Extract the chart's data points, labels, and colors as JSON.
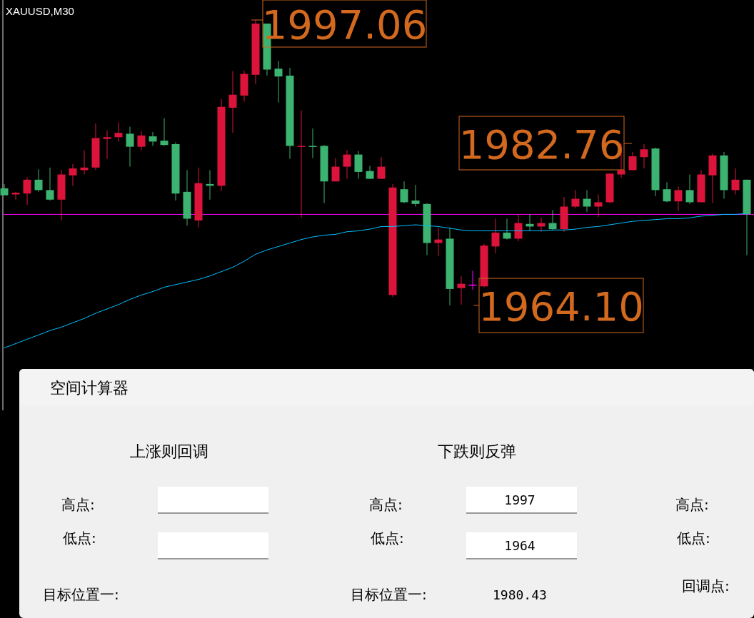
{
  "chart_data": [
    {
      "type": "candlestick",
      "title": "XAUUSD,M30",
      "categories": [
        null,
        null,
        null,
        null,
        null,
        null,
        null,
        null,
        null,
        null,
        null,
        null,
        null,
        null,
        null,
        null,
        null,
        null,
        null,
        null,
        null,
        null,
        null,
        null,
        null,
        null,
        null,
        null,
        null,
        null,
        null,
        null,
        null,
        null,
        null,
        null,
        null,
        null,
        null,
        null,
        null,
        null,
        null,
        null,
        null,
        null,
        null,
        null,
        null,
        null,
        null,
        null,
        null,
        null,
        null,
        null,
        null,
        null,
        null,
        null,
        null,
        null,
        null,
        null,
        null,
        null
      ],
      "ohlc": [
        [
          1977.6,
          1978.1,
          1976.8,
          1976.8
        ],
        [
          1976.9,
          1977.2,
          1976.3,
          1977.1
        ],
        [
          1977.0,
          1978.9,
          1975.7,
          1978.6
        ],
        [
          1978.6,
          1979.8,
          1977.2,
          1977.4
        ],
        [
          1977.4,
          1980.0,
          1976.2,
          1976.3
        ],
        [
          1976.3,
          1979.7,
          1973.9,
          1979.2
        ],
        [
          1979.1,
          1980.4,
          1977.9,
          1979.9
        ],
        [
          1979.7,
          1982.0,
          1979.2,
          1980.0
        ],
        [
          1980.0,
          1985.1,
          1979.7,
          1983.4
        ],
        [
          1983.3,
          1984.3,
          1981.0,
          1983.5
        ],
        [
          1983.5,
          1985.2,
          1983.0,
          1984.0
        ],
        [
          1983.9,
          1984.7,
          1980.1,
          1982.4
        ],
        [
          1982.4,
          1984.2,
          1982.0,
          1983.7
        ],
        [
          1983.6,
          1984.1,
          1982.5,
          1983.0
        ],
        [
          1983.1,
          1985.7,
          1982.5,
          1982.6
        ],
        [
          1982.7,
          1982.9,
          1976.2,
          1977.0
        ],
        [
          1977.2,
          1979.7,
          1973.3,
          1974.1
        ],
        [
          1973.9,
          1980.0,
          1973.1,
          1978.2
        ],
        [
          1978.1,
          1979.7,
          1976.3,
          1977.9
        ],
        [
          1977.9,
          1987.9,
          1977.3,
          1987.0
        ],
        [
          1986.9,
          1991.1,
          1984.0,
          1988.4
        ],
        [
          1988.3,
          1991.2,
          1987.6,
          1990.8
        ],
        [
          1990.7,
          1997.06,
          1989.6,
          1996.6
        ],
        [
          1996.6,
          1996.6,
          1990.6,
          1991.3
        ],
        [
          1991.4,
          1992.3,
          1987.5,
          1990.5
        ],
        [
          1990.6,
          1991.5,
          1981.0,
          1982.5
        ],
        [
          1982.4,
          1986.6,
          1974.2,
          1982.5
        ],
        [
          1982.5,
          1984.5,
          1981.1,
          1982.4
        ],
        [
          1982.5,
          1982.6,
          1975.9,
          1978.4
        ],
        [
          1978.4,
          1981.1,
          1978.4,
          1980.1
        ],
        [
          1980.1,
          1982.0,
          1978.7,
          1981.5
        ],
        [
          1981.5,
          1981.9,
          1978.7,
          1979.5
        ],
        [
          1979.6,
          1980.2,
          1978.7,
          1978.7
        ],
        [
          1978.7,
          1981.2,
          1978.7,
          1980.1
        ],
        [
          1965.3,
          1978.1,
          1965.1,
          1977.7
        ],
        [
          1977.5,
          1978.4,
          1975.9,
          1976.0
        ],
        [
          1976.2,
          1978.0,
          1975.5,
          1975.8
        ],
        [
          1975.8,
          1975.9,
          1969.9,
          1971.3
        ],
        [
          1971.3,
          1973.1,
          1969.8,
          1971.7
        ],
        [
          1971.8,
          1973.1,
          1964.1,
          1966.0
        ],
        [
          1966.1,
          1967.5,
          1964.2,
          1966.6
        ],
        [
          1966.5,
          1968.1,
          1965.9,
          1966.5
        ],
        [
          1966.3,
          1971.2,
          1966.2,
          1971.0
        ],
        [
          1970.9,
          1974.1,
          1970.1,
          1972.5
        ],
        [
          1972.5,
          1974.1,
          1971.7,
          1971.8
        ],
        [
          1971.8,
          1974.6,
          1971.5,
          1973.6
        ],
        [
          1973.5,
          1974.6,
          1972.7,
          1973.2
        ],
        [
          1973.2,
          1974.2,
          1972.6,
          1973.6
        ],
        [
          1973.6,
          1975.1,
          1972.8,
          1972.9
        ],
        [
          1972.9,
          1976.6,
          1972.6,
          1975.5
        ],
        [
          1975.5,
          1977.4,
          1975.3,
          1976.4
        ],
        [
          1976.4,
          1977.4,
          1974.9,
          1975.5
        ],
        [
          1975.5,
          1976.9,
          1974.3,
          1976.0
        ],
        [
          1976.0,
          1979.3,
          1975.9,
          1979.3
        ],
        [
          1979.2,
          1982.76,
          1978.8,
          1979.7
        ],
        [
          1979.7,
          1981.8,
          1979.7,
          1981.3
        ],
        [
          1981.2,
          1982.7,
          1979.9,
          1982.1
        ],
        [
          1982.2,
          1982.3,
          1976.7,
          1977.4
        ],
        [
          1977.5,
          1978.3,
          1976.0,
          1976.1
        ],
        [
          1976.1,
          1977.8,
          1975.0,
          1977.4
        ],
        [
          1977.4,
          1979.2,
          1975.8,
          1976.0
        ],
        [
          1976.0,
          1979.7,
          1976.0,
          1979.2
        ],
        [
          1979.1,
          1981.6,
          1975.9,
          1981.4
        ],
        [
          1981.4,
          1981.8,
          1976.4,
          1977.4
        ],
        [
          1977.4,
          1979.9,
          1976.9,
          1978.6
        ],
        [
          1978.6,
          1978.6,
          1969.9,
          1974.6
        ]
      ],
      "colors": [
        "#3cb371",
        "#dc143c",
        "#dc143c",
        "#3cb371",
        "#3cb371",
        "#dc143c",
        "#dc143c",
        "#dc143c",
        "#dc143c",
        "#dc143c",
        "#dc143c",
        "#3cb371",
        "#dc143c",
        "#3cb371",
        "#3cb371",
        "#3cb371",
        "#3cb371",
        "#dc143c",
        "#3cb371",
        "#dc143c",
        "#dc143c",
        "#dc143c",
        "#dc143c",
        "#3cb371",
        "#3cb371",
        "#3cb371",
        "#dc143c",
        "#3cb371",
        "#3cb371",
        "#dc143c",
        "#dc143c",
        "#3cb371",
        "#3cb371",
        "#dc143c",
        "#dc143c",
        "#3cb371",
        "#3cb371",
        "#3cb371",
        "#dc143c",
        "#3cb371",
        "#dc143c",
        "#ff00ff",
        "#dc143c",
        "#dc143c",
        "#3cb371",
        "#dc143c",
        "#3cb371",
        "#dc143c",
        "#3cb371",
        "#dc143c",
        "#dc143c",
        "#3cb371",
        "#dc143c",
        "#dc143c",
        "#dc143c",
        "#dc143c",
        "#dc143c",
        "#3cb371",
        "#3cb371",
        "#dc143c",
        "#3cb371",
        "#dc143c",
        "#dc143c",
        "#3cb371",
        "#dc143c",
        "#3cb371"
      ],
      "series": [
        {
          "type": "line",
          "color": "#00bfff",
          "values": [
            1959.2,
            1959.7,
            1960.2,
            1960.7,
            1961.2,
            1961.6,
            1962.1,
            1962.6,
            1963.2,
            1963.7,
            1964.2,
            1964.8,
            1965.3,
            1965.7,
            1966.2,
            1966.5,
            1966.8,
            1967.1,
            1967.5,
            1968.0,
            1968.5,
            1969.2,
            1970.0,
            1970.5,
            1970.9,
            1971.3,
            1971.7,
            1972.0,
            1972.2,
            1972.3,
            1972.6,
            1972.7,
            1972.9,
            1973.2,
            1973.2,
            1973.3,
            1973.4,
            1973.3,
            1973.2,
            1973.0,
            1972.8,
            1972.7,
            1972.7,
            1972.7,
            1972.7,
            1972.7,
            1972.7,
            1972.7,
            1972.8,
            1972.8,
            1972.9,
            1973.1,
            1973.2,
            1973.4,
            1973.6,
            1973.8,
            1973.9,
            1974.0,
            1974.1,
            1974.1,
            1974.2,
            1974.4,
            1974.5,
            1974.6,
            1974.6,
            1974.7
          ]
        }
      ],
      "ref_lines": [
        {
          "axis": "y",
          "value": 1974.6,
          "color": "#ff00ff"
        }
      ],
      "annotations": [
        "1997.06",
        "1982.76",
        "1964.10"
      ]
    },
    {
      "type": "other",
      "title": "空间计算器",
      "annotations": [
        "上涨则回调",
        "下跌则反弹",
        "高点:",
        "低点:",
        "高点:",
        "1997",
        "低点:",
        "1964",
        "高点:",
        "低点:",
        "目标位置一:",
        "目标位置一:",
        "1980.43",
        "回调点:"
      ]
    }
  ]
}
